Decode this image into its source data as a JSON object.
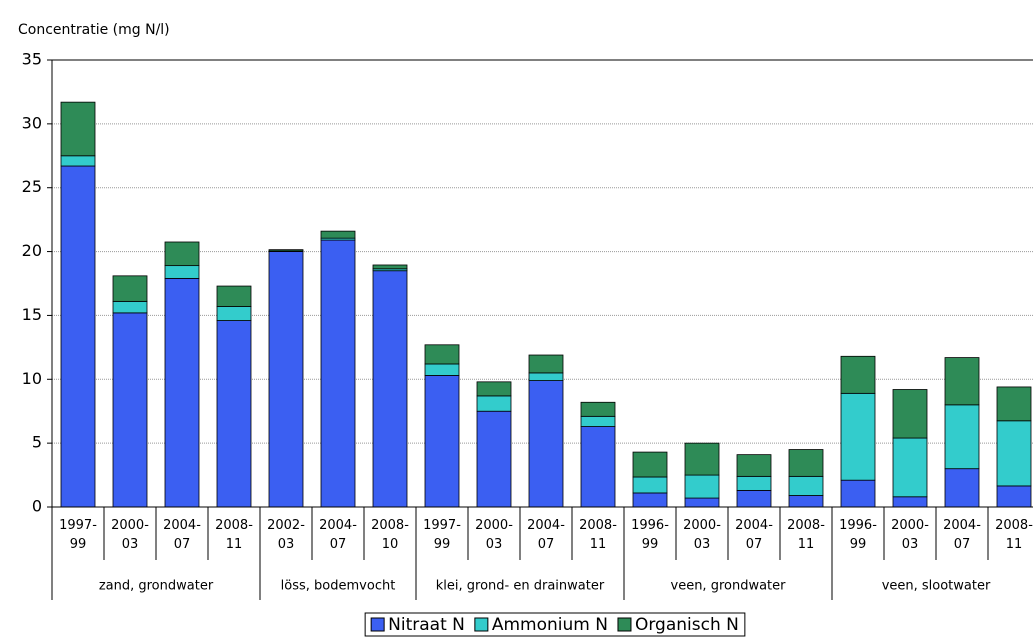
{
  "chart_data": {
    "type": "stacked-bar",
    "y_label": "Concentratie (mg N/l)",
    "categories": [
      [
        "1997-",
        "99"
      ],
      [
        "2000-",
        "03"
      ],
      [
        "2004-",
        "07"
      ],
      [
        "2008-",
        "11"
      ],
      [
        "2002-",
        "03"
      ],
      [
        "2004-",
        "07"
      ],
      [
        "2008-",
        "10"
      ],
      [
        "1997-",
        "99"
      ],
      [
        "2000-",
        "03"
      ],
      [
        "2004-",
        "07"
      ],
      [
        "2008-",
        "11"
      ],
      [
        "1996-",
        "99"
      ],
      [
        "2000-",
        "03"
      ],
      [
        "2004-",
        "07"
      ],
      [
        "2008-",
        "11"
      ],
      [
        "1996-",
        "99"
      ],
      [
        "2000-",
        "03"
      ],
      [
        "2004-",
        "07"
      ],
      [
        "2008-",
        "11"
      ]
    ],
    "groups": [
      {
        "label": "zand, grondwater",
        "count": 4
      },
      {
        "label": "löss, bodemvocht",
        "count": 3
      },
      {
        "label": "klei, grond- en drainwater",
        "count": 4
      },
      {
        "label": "veen, grondwater",
        "count": 4
      },
      {
        "label": "veen, slootwater",
        "count": 4
      }
    ],
    "series": [
      {
        "name": "Nitraat N",
        "color": "#3b5ff2",
        "values": [
          26.7,
          15.2,
          17.9,
          14.6,
          20.0,
          20.9,
          18.5,
          10.3,
          7.5,
          9.9,
          6.3,
          1.1,
          0.7,
          1.3,
          0.9,
          2.1,
          0.8,
          3.0,
          1.65
        ]
      },
      {
        "name": "Ammonium N",
        "color": "#33cccc",
        "values": [
          0.8,
          0.9,
          1.0,
          1.1,
          0.05,
          0.15,
          0.15,
          0.9,
          1.2,
          0.6,
          0.8,
          1.25,
          1.8,
          1.1,
          1.5,
          6.8,
          4.6,
          5.0,
          5.1
        ]
      },
      {
        "name": "Organisch N",
        "color": "#2e8b57",
        "values": [
          4.2,
          2.0,
          1.85,
          1.6,
          0.1,
          0.55,
          0.3,
          1.5,
          1.1,
          1.4,
          1.1,
          1.95,
          2.5,
          1.7,
          2.1,
          2.9,
          3.8,
          3.7,
          2.65
        ]
      }
    ],
    "ylim": [
      0,
      35
    ],
    "yticks": [
      0,
      5,
      10,
      15,
      20,
      25,
      30,
      35
    ],
    "grid": true
  }
}
